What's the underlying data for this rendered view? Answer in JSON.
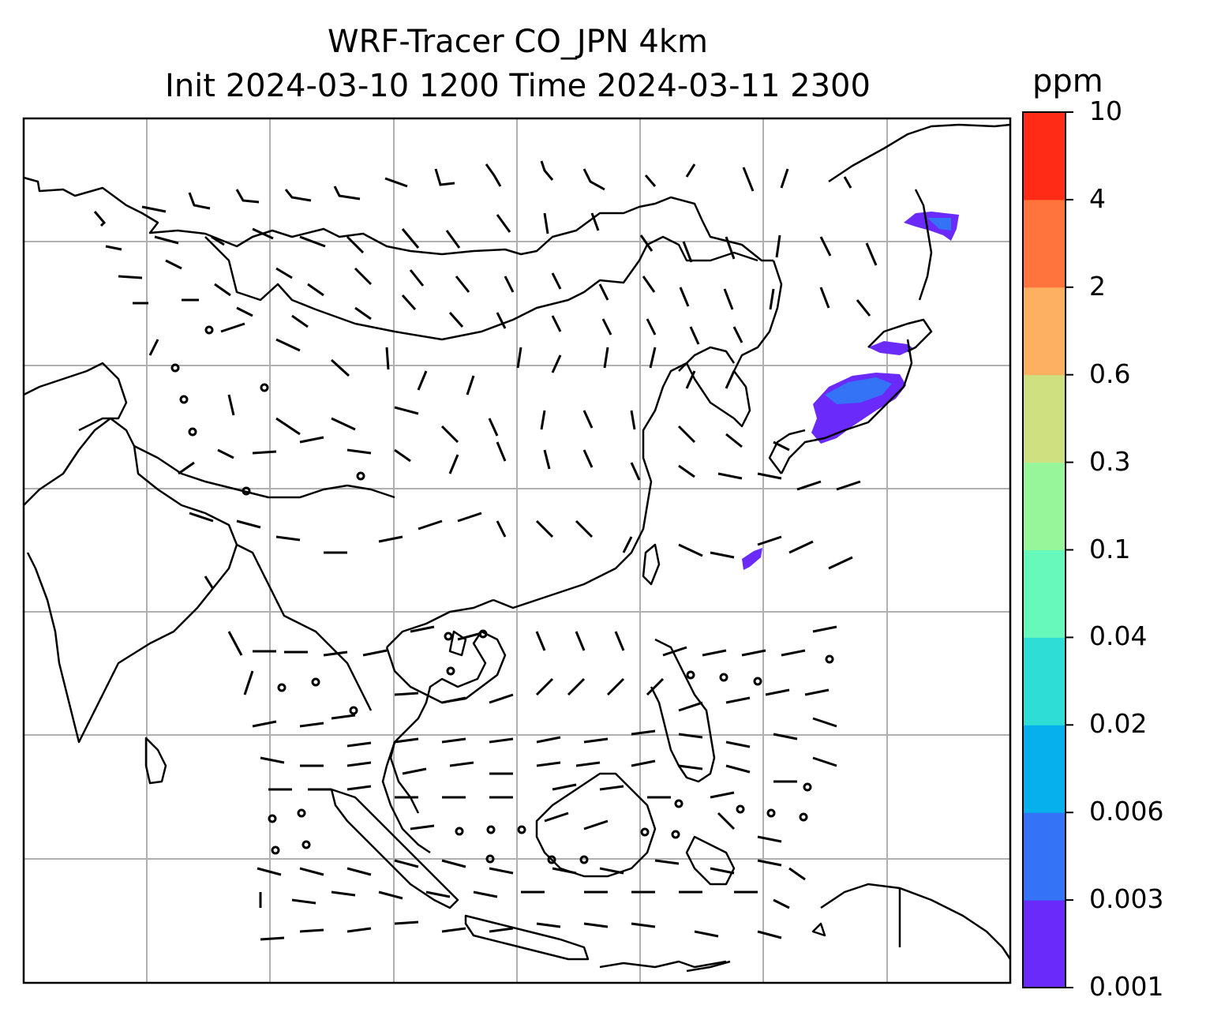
{
  "title": {
    "line1": "WRF-Tracer CO_JPN 4km",
    "line2": "Init 2024-03-10 1200 Time 2024-03-11 2300"
  },
  "colorbar": {
    "unit": "ppm",
    "levels": [
      "0.001",
      "0.003",
      "0.006",
      "0.02",
      "0.04",
      "0.1",
      "0.3",
      "0.6",
      "2",
      "4",
      "10"
    ],
    "colors": [
      "#6A2BFA",
      "#3473F5",
      "#06B0ED",
      "#2EDDD5",
      "#66F9BB",
      "#98F69A",
      "#CFE080",
      "#FDB062",
      "#FF733D",
      "#FF2B17"
    ]
  },
  "map": {
    "background": "#ffffff",
    "gridline_color": "#b0b0b0",
    "coastline_color": "#000000",
    "tracer_plumes": [
      {
        "region": "Sakhalin / Hokkaido north",
        "level": "0.001-0.006"
      },
      {
        "region": "Hokkaido south",
        "level": "0.001-0.003"
      },
      {
        "region": "Honshu / Tokyo area",
        "level": "0.001-0.006"
      },
      {
        "region": "Okinawa",
        "level": "0.001-0.003"
      }
    ]
  }
}
